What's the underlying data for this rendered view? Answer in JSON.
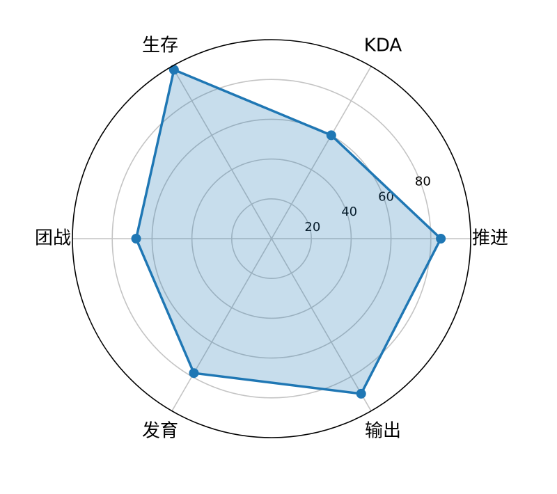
{
  "chart_data": {
    "type": "radar",
    "axes": [
      "推进",
      "KDA",
      "生存",
      "团战",
      "发育",
      "输出"
    ],
    "series": [
      {
        "values": [
          85,
          60,
          98,
          68,
          78,
          90
        ]
      }
    ],
    "r_ticks": [
      "20",
      "40",
      "60",
      "80"
    ],
    "rlim": [
      0,
      100
    ],
    "grid": true,
    "legend": "none",
    "colors": {
      "line": "#1f77b4",
      "fill": "#1f77b4",
      "grid": "#c4c4c4",
      "frame": "#000000"
    }
  }
}
